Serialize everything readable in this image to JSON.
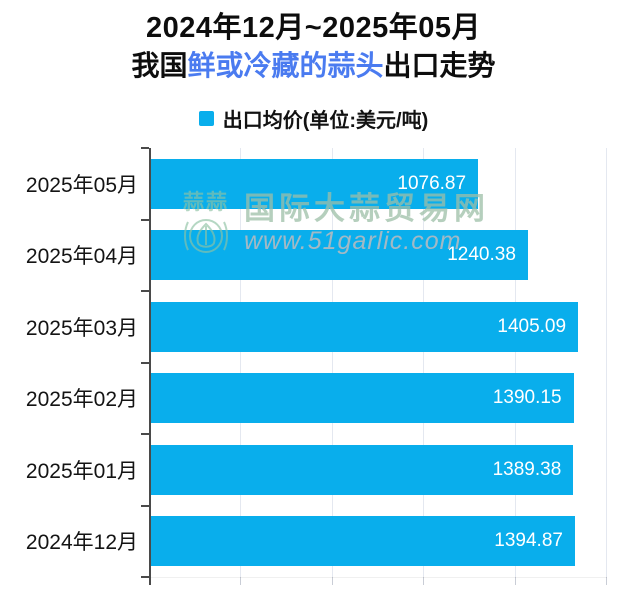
{
  "title": {
    "line1": "2024年12月~2025年05月",
    "line2_prefix": "我国",
    "line2_highlight": "鲜或冷藏的蒜头",
    "line2_suffix": "出口走势"
  },
  "legend": {
    "label": "出口均价(单位:美元/吨)"
  },
  "watermark": {
    "logo_chars": "蒜蒜",
    "site_name": "国际大蒜贸易网",
    "site_url": "www.51garlic.com"
  },
  "colors": {
    "bar": "#09aeec",
    "title_highlight": "#4a7bf0",
    "gridline": "#e4e8f0",
    "axis": "#4a4a4a",
    "value_label": "#ffffff"
  },
  "chart_data": {
    "type": "bar",
    "orientation": "horizontal",
    "title": "2024年12月~2025年05月 我国鲜或冷藏的蒜头出口走势",
    "series_name": "出口均价(单位:美元/吨)",
    "categories": [
      "2025年05月",
      "2025年04月",
      "2025年03月",
      "2025年02月",
      "2025年01月",
      "2024年12月"
    ],
    "values": [
      1076.87,
      1240.38,
      1405.09,
      1390.15,
      1389.38,
      1394.87
    ],
    "value_labels": [
      "1076.87",
      "1240.38",
      "1405.09",
      "1390.15",
      "1389.38",
      "1394.87"
    ],
    "xlim": [
      0,
      1500
    ],
    "grid_step": 300,
    "grid": true,
    "legend_position": "top",
    "value_label_position": "inside-end",
    "x_axis_tick_labels": "none"
  }
}
